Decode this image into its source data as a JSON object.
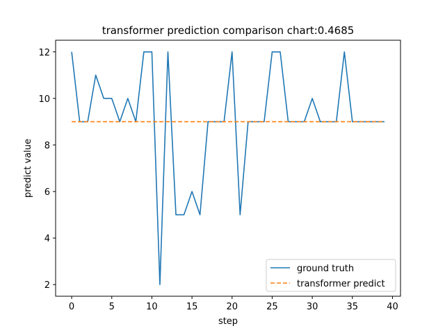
{
  "chart_data": {
    "type": "line",
    "title": "transformer prediction comparison chart:0.4685",
    "xlabel": "step",
    "ylabel": "predict value",
    "xlim": [
      -2,
      41
    ],
    "ylim": [
      1.5,
      12.5
    ],
    "xticks": [
      0,
      5,
      10,
      15,
      20,
      25,
      30,
      35,
      40
    ],
    "yticks": [
      2,
      4,
      6,
      8,
      10,
      12
    ],
    "grid": false,
    "legend_position": "lower-right",
    "x": [
      0,
      1,
      2,
      3,
      4,
      5,
      6,
      7,
      8,
      9,
      10,
      11,
      12,
      13,
      14,
      15,
      16,
      17,
      18,
      19,
      20,
      21,
      22,
      23,
      24,
      25,
      26,
      27,
      28,
      29,
      30,
      31,
      32,
      33,
      34,
      35,
      36,
      37,
      38,
      39
    ],
    "series": [
      {
        "name": "ground truth",
        "color": "#1f77b4",
        "style": "solid",
        "values": [
          12,
          9,
          9,
          11,
          10,
          10,
          9,
          10,
          9,
          12,
          12,
          2,
          12,
          5,
          5,
          6,
          5,
          9,
          9,
          9,
          12,
          5,
          9,
          9,
          9,
          12,
          12,
          9,
          9,
          9,
          10,
          9,
          9,
          9,
          12,
          9,
          9,
          9,
          9,
          9
        ]
      },
      {
        "name": "transformer predict",
        "color": "#ff7f0e",
        "style": "dashed",
        "values": [
          9,
          9,
          9,
          9,
          9,
          9,
          9,
          9,
          9,
          9,
          9,
          9,
          9,
          9,
          9,
          9,
          9,
          9,
          9,
          9,
          9,
          9,
          9,
          9,
          9,
          9,
          9,
          9,
          9,
          9,
          9,
          9,
          9,
          9,
          9,
          9,
          9,
          9,
          9,
          9
        ]
      }
    ]
  }
}
